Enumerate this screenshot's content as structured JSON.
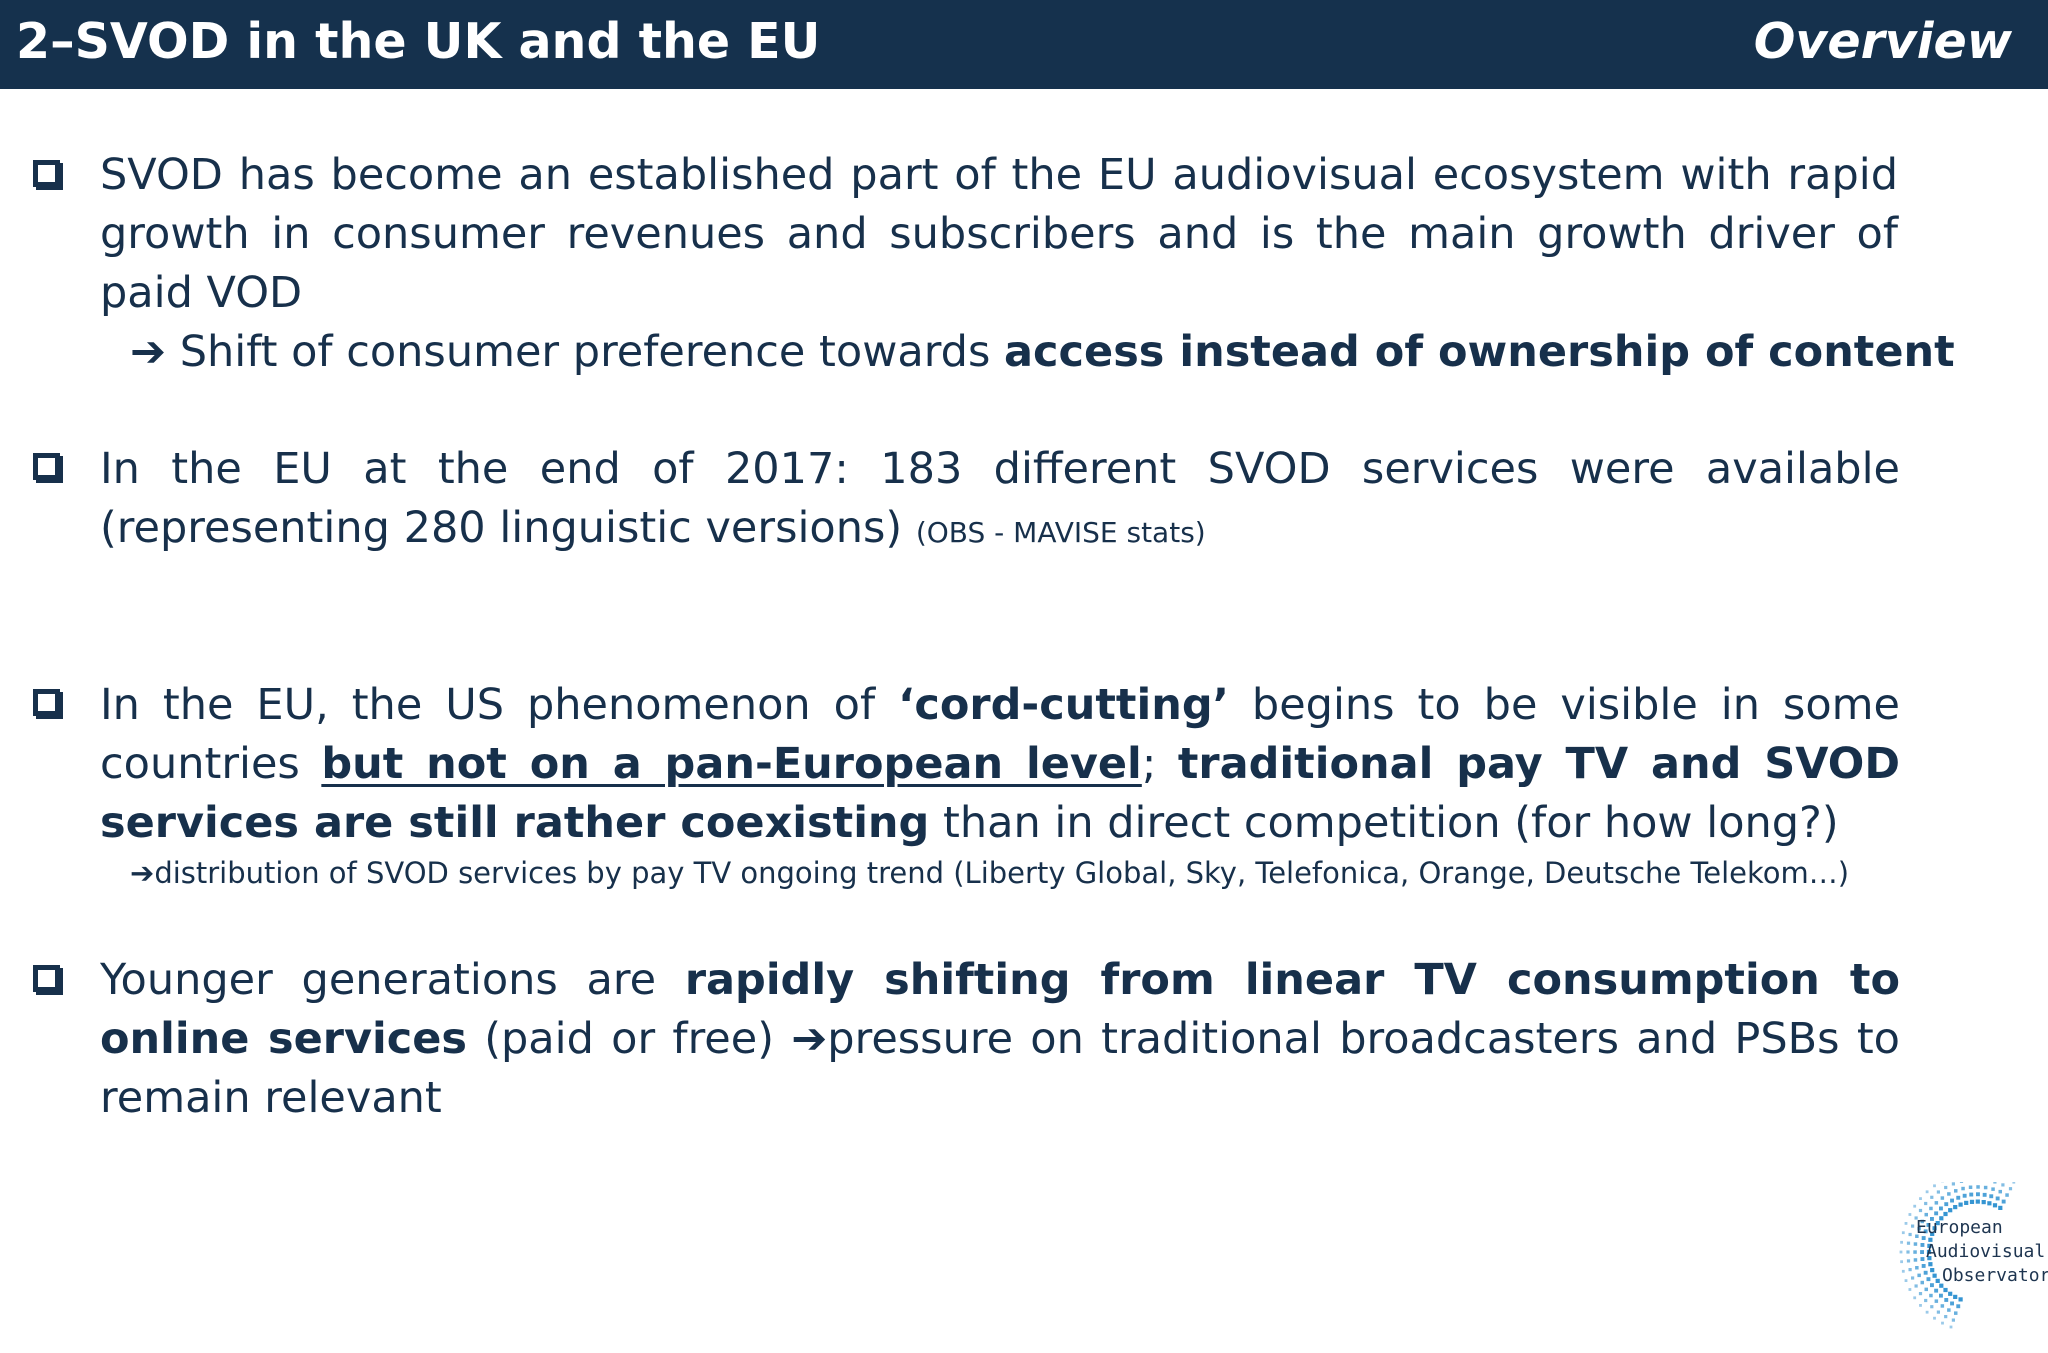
{
  "header": {
    "title": "2–SVOD in the UK and the EU",
    "section": "Overview"
  },
  "bullets": {
    "b1": {
      "text": "SVOD has become an established part of the EU audiovisual ecosystem with rapid growth in consumer revenues and subscribers and is the main growth driver of paid VOD",
      "sub_arrow": "➔",
      "sub_plain": "Shift of consumer preference towards ",
      "sub_bold": "access instead of ownership of content"
    },
    "b2": {
      "text": "In the EU at the end of 2017: 183 different SVOD services were available (representing 280 linguistic versions) ",
      "note": "(OBS - MAVISE stats)"
    },
    "b3": {
      "t1": "In the EU, the US phenomenon of ",
      "t2": "‘cord-cutting’",
      "t3": " begins to be visible in some countries ",
      "t4": "but not on a pan-European level",
      "t5": "; ",
      "t6": "traditional pay TV and SVOD services are still rather coexisting",
      "t7": " than in direct competition (for how long?)",
      "sub_arrow": "➔",
      "sub_text": "distribution of SVOD services by pay TV ongoing trend (Liberty Global, Sky, Telefonica, Orange, Deutsche Telekom…)"
    },
    "b4": {
      "t1": "Younger generations are ",
      "t2": "rapidly shifting from linear TV consumption to online services",
      "t3": " (paid or free) ",
      "arrow": "➔",
      "t4": "pressure on traditional broadcasters and PSBs to remain relevant"
    }
  },
  "logo": {
    "line1": "European",
    "line2": "Audiovisual",
    "line3": "Observatory",
    "color": "#2a8fd0"
  }
}
